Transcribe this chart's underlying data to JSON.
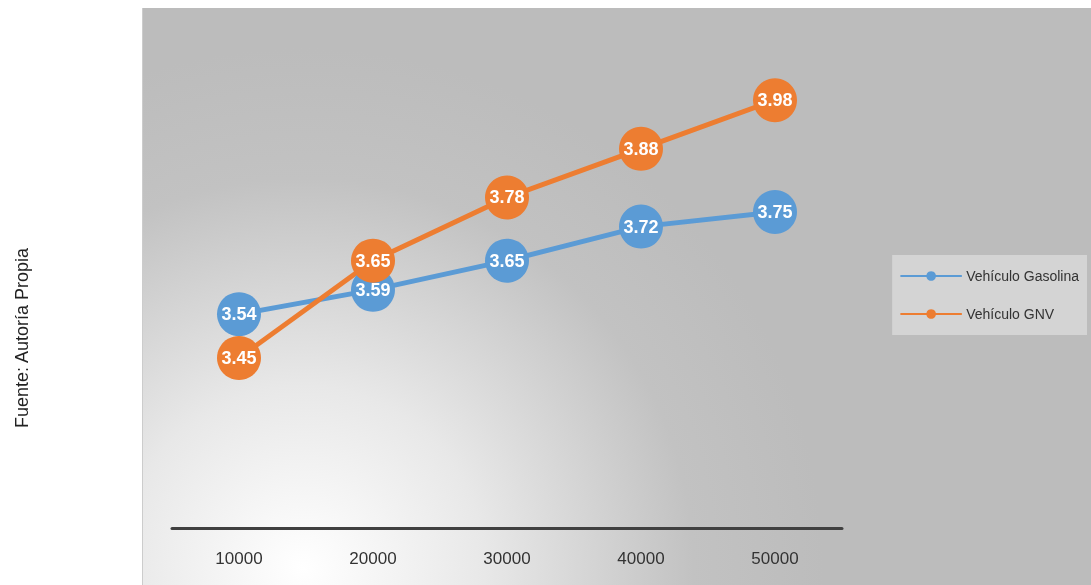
{
  "chart_data": {
    "type": "line",
    "categories": [
      "10000",
      "20000",
      "30000",
      "40000",
      "50000"
    ],
    "series": [
      {
        "name": "Vehículo Gasolina",
        "color": "#5b9bd5",
        "values": [
          3.54,
          3.59,
          3.65,
          3.72,
          3.75
        ]
      },
      {
        "name": "Vehículo GNV",
        "color": "#ed7d31",
        "values": [
          3.45,
          3.65,
          3.78,
          3.88,
          3.98
        ]
      }
    ],
    "data_labels": true,
    "marker": "circle",
    "line_style": "solid",
    "grid": false,
    "legend": "right",
    "annotations": [
      "Fuente: Autoría Propia"
    ]
  }
}
